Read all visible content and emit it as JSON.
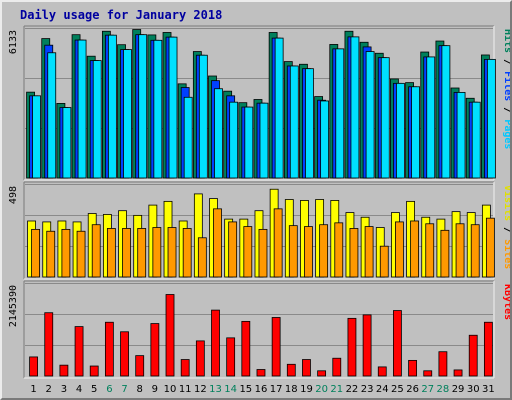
{
  "chart_data": {
    "title": "Daily usage for January 2018",
    "type": "bar",
    "categories": [
      "1",
      "2",
      "3",
      "4",
      "5",
      "6",
      "7",
      "8",
      "9",
      "10",
      "11",
      "12",
      "13",
      "14",
      "15",
      "16",
      "17",
      "18",
      "19",
      "20",
      "21",
      "22",
      "23",
      "24",
      "25",
      "26",
      "27",
      "28",
      "29",
      "30",
      "31"
    ],
    "weekend_days": [
      "6",
      "7",
      "13",
      "14",
      "20",
      "21",
      "27",
      "28"
    ],
    "panels": [
      {
        "id": "pages-files-hits",
        "max_label": "6133",
        "ylim": [
          0,
          6133
        ],
        "legend": [
          "Pages",
          "Files",
          "Hits"
        ],
        "legend_separator": " / ",
        "series": [
          {
            "name": "Hits",
            "color": "#00805c",
            "values": [
              3510,
              5700,
              3050,
              5860,
              4980,
              6000,
              5450,
              6070,
              5850,
              5950,
              3850,
              5170,
              4170,
              3550,
              3080,
              3210,
              5950,
              4760,
              4650,
              3330,
              5460,
              6000,
              5550,
              5100,
              4050,
              3900,
              5150,
              5600,
              3680,
              3260,
              5030
            ]
          },
          {
            "name": "Files",
            "color": "#0040ff",
            "values": [
              3360,
              5430,
              2880,
              5640,
              4800,
              5840,
              5250,
              5860,
              5630,
              5760,
              3700,
              5020,
              3980,
              3360,
              2900,
              3060,
              5720,
              4580,
              4470,
              3180,
              5280,
              5770,
              5360,
              4920,
              3870,
              3730,
              4950,
              5410,
              3500,
              3100,
              4850
            ]
          },
          {
            "name": "Pages",
            "color": "#00e0ff",
            "values": [
              3360,
              5120,
              2880,
              5640,
              4800,
              5840,
              5250,
              5860,
              5630,
              5760,
              3300,
              5020,
              3650,
              3100,
              2900,
              3060,
              5720,
              4580,
              4470,
              3150,
              5280,
              5770,
              5170,
              4920,
              3870,
              3730,
              4950,
              5410,
              3500,
              3100,
              4850
            ]
          }
        ]
      },
      {
        "id": "sites-visits",
        "max_label": "498",
        "ylim": [
          0,
          498
        ],
        "legend": [
          "Sites",
          "Visits"
        ],
        "legend_separator": " / ",
        "series": [
          {
            "name": "Visits",
            "color": "#ffff00",
            "values": [
              300,
              295,
              300,
              295,
              340,
              335,
              355,
              330,
              385,
              405,
              300,
              445,
              420,
              310,
              310,
              355,
              470,
              415,
              410,
              415,
              410,
              345,
              320,
              265,
              345,
              405,
              320,
              310,
              350,
              345,
              385
            ]
          },
          {
            "name": "Sites",
            "color": "#ff9900",
            "values": [
              255,
              245,
              255,
              245,
              280,
              260,
              260,
              260,
              265,
              265,
              260,
              210,
              365,
              295,
              270,
              255,
              365,
              275,
              270,
              280,
              290,
              260,
              270,
              165,
              295,
              300,
              285,
              250,
              285,
              280,
              315
            ]
          }
        ]
      },
      {
        "id": "kbytes",
        "max_label": "2145390",
        "ylim": [
          0,
          2145390
        ],
        "legend": [
          "KBytes"
        ],
        "legend_separator": "",
        "series": [
          {
            "name": "KBytes",
            "color": "#ff0000",
            "values": [
              440000,
              1460000,
              250000,
              1140000,
              230000,
              1240000,
              1020000,
              470000,
              1210000,
              1880000,
              380000,
              810000,
              1520000,
              880000,
              1260000,
              150000,
              1350000,
              270000,
              380000,
              120000,
              410000,
              1330000,
              1410000,
              210000,
              1510000,
              360000,
              120000,
              560000,
              140000,
              940000,
              1240000
            ]
          }
        ]
      }
    ]
  }
}
